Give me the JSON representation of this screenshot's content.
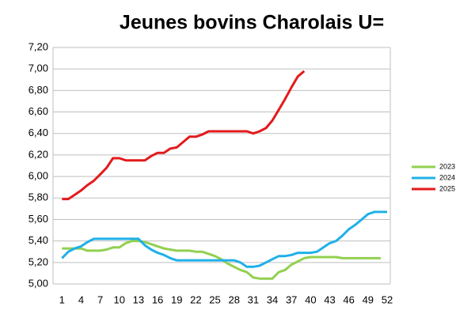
{
  "chart_data": {
    "type": "line",
    "title": "Jeunes bovins Charolais U=",
    "x": [
      1,
      2,
      3,
      4,
      5,
      6,
      7,
      8,
      9,
      10,
      11,
      12,
      13,
      14,
      15,
      16,
      17,
      18,
      19,
      20,
      21,
      22,
      23,
      24,
      25,
      26,
      27,
      28,
      29,
      30,
      31,
      32,
      33,
      34,
      35,
      36,
      37,
      38,
      39,
      40,
      41,
      42,
      43,
      44,
      45,
      46,
      47,
      48,
      49,
      50,
      51,
      52
    ],
    "xlim": [
      -0.4,
      52.5
    ],
    "xticks": [
      1,
      4,
      7,
      10,
      13,
      16,
      19,
      22,
      25,
      28,
      31,
      34,
      37,
      40,
      43,
      46,
      49,
      52
    ],
    "ylim": [
      5.0,
      7.2
    ],
    "yticks": [
      {
        "value": 5.0,
        "label": "5,00"
      },
      {
        "value": 5.2,
        "label": "5,20"
      },
      {
        "value": 5.4,
        "label": "5,40"
      },
      {
        "value": 5.6,
        "label": "5,60"
      },
      {
        "value": 5.8,
        "label": "5,80"
      },
      {
        "value": 6.0,
        "label": "6,00"
      },
      {
        "value": 6.2,
        "label": "6,20"
      },
      {
        "value": 6.4,
        "label": "6,40"
      },
      {
        "value": 6.6,
        "label": "6,60"
      },
      {
        "value": 6.8,
        "label": "6,80"
      },
      {
        "value": 7.0,
        "label": "7,00"
      },
      {
        "value": 7.2,
        "label": "7,20"
      }
    ],
    "grid": true,
    "legend": "right",
    "series": [
      {
        "name": "2023",
        "color": "#92d050",
        "values": [
          5.33,
          5.33,
          5.33,
          5.33,
          5.31,
          5.31,
          5.31,
          5.32,
          5.34,
          5.34,
          5.38,
          5.4,
          5.4,
          5.39,
          5.37,
          5.35,
          5.33,
          5.32,
          5.31,
          5.31,
          5.31,
          5.3,
          5.3,
          5.28,
          5.26,
          5.23,
          5.19,
          5.16,
          5.13,
          5.11,
          5.06,
          5.05,
          5.05,
          5.05,
          5.11,
          5.13,
          5.18,
          5.21,
          5.24,
          5.25,
          5.25,
          5.25,
          5.25,
          5.25,
          5.24,
          5.24,
          5.24,
          5.24,
          5.24,
          5.24,
          5.24,
          null
        ]
      },
      {
        "name": "2024",
        "color": "#1fb0e8",
        "values": [
          5.24,
          5.3,
          5.33,
          5.35,
          5.39,
          5.42,
          5.42,
          5.42,
          5.42,
          5.42,
          5.42,
          5.42,
          5.42,
          5.36,
          5.32,
          5.29,
          5.27,
          5.24,
          5.22,
          5.22,
          5.22,
          5.22,
          5.22,
          5.22,
          5.22,
          5.22,
          5.22,
          5.22,
          5.2,
          5.16,
          5.16,
          5.17,
          5.2,
          5.23,
          5.26,
          5.26,
          5.27,
          5.29,
          5.29,
          5.29,
          5.3,
          5.34,
          5.38,
          5.4,
          5.45,
          5.51,
          5.55,
          5.6,
          5.65,
          5.67,
          5.67,
          5.67
        ]
      },
      {
        "name": "2025",
        "color": "#e31a1c",
        "values": [
          5.79,
          5.79,
          5.83,
          5.87,
          5.92,
          5.96,
          6.02,
          6.08,
          6.17,
          6.17,
          6.15,
          6.15,
          6.15,
          6.15,
          6.19,
          6.22,
          6.22,
          6.26,
          6.27,
          6.32,
          6.37,
          6.37,
          6.39,
          6.42,
          6.42,
          6.42,
          6.42,
          6.42,
          6.42,
          6.42,
          6.4,
          6.42,
          6.45,
          6.52,
          6.62,
          6.72,
          6.83,
          6.93,
          6.98,
          null,
          null,
          null,
          null,
          null,
          null,
          null,
          null,
          null,
          null,
          null,
          null,
          null
        ]
      }
    ]
  }
}
